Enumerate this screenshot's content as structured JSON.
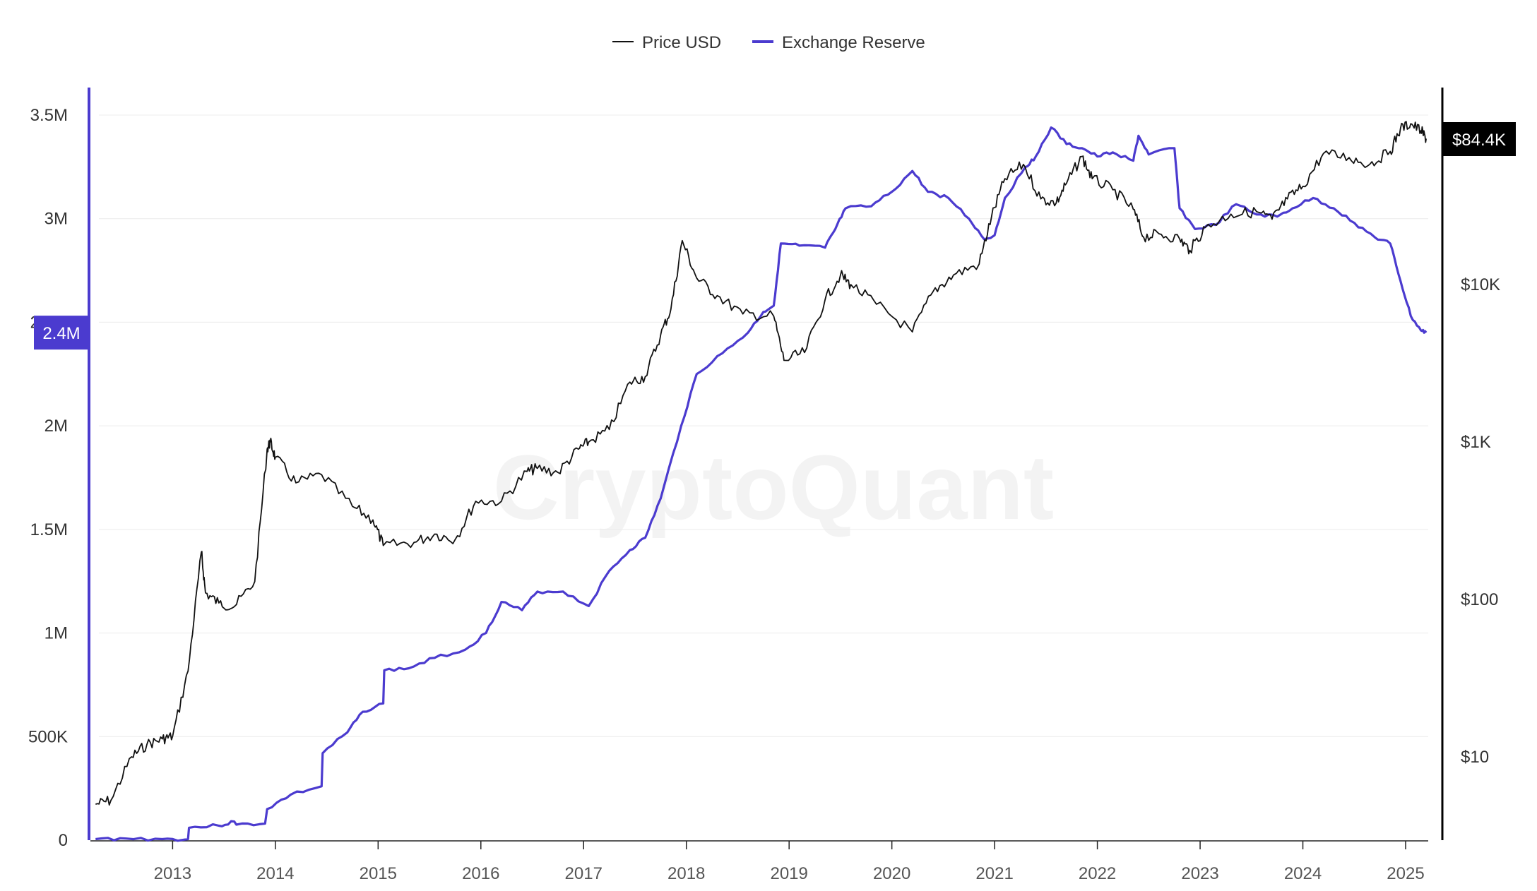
{
  "watermark": "CryptoQuant",
  "colors": {
    "price": "#111111",
    "reserve": "#4b3bcf",
    "grid": "#ececec",
    "reserve_badge": "#4b3bcf",
    "price_badge": "#000000"
  },
  "chart_data": {
    "type": "line",
    "legend": {
      "placement": "top-center",
      "entries": [
        {
          "label": "Price USD",
          "series": "price"
        },
        {
          "label": "Exchange Reserve",
          "series": "reserve"
        }
      ]
    },
    "x_axis": {
      "min": 2012.2,
      "max": 2025.22,
      "ticks": [
        2013,
        2014,
        2015,
        2016,
        2017,
        2018,
        2019,
        2020,
        2021,
        2022,
        2023,
        2024,
        2025
      ],
      "tick_labels": [
        "2013",
        "2014",
        "2015",
        "2016",
        "2017",
        "2018",
        "2019",
        "2020",
        "2021",
        "2022",
        "2023",
        "2024",
        "2025"
      ]
    },
    "y_axis_left": {
      "min": 0,
      "max": 3500000,
      "ticks": [
        0,
        500000,
        1000000,
        1500000,
        2000000,
        2500000,
        3000000,
        3500000
      ],
      "tick_labels": [
        "0",
        "500K",
        "1M",
        "1.5M",
        "2M",
        "2.5M",
        "3M",
        "3.5M"
      ],
      "current_value_label": "2.4M",
      "current_value": 2450000
    },
    "y_axis_right": {
      "scale": "log",
      "ticks": [
        10,
        100,
        1000,
        10000
      ],
      "tick_labels": [
        "$10",
        "$100",
        "$1K",
        "$10K"
      ],
      "current_value_label": "$84.4K",
      "current_value": 84400
    },
    "grid": true,
    "series": [
      {
        "name": "Exchange Reserve",
        "axis": "left",
        "points": [
          [
            2012.25,
            5000
          ],
          [
            2012.55,
            8000
          ],
          [
            2012.9,
            5000
          ],
          [
            2013.15,
            5000
          ],
          [
            2013.16,
            60000
          ],
          [
            2013.45,
            70000
          ],
          [
            2013.6,
            90000
          ],
          [
            2013.62,
            75000
          ],
          [
            2013.9,
            80000
          ],
          [
            2013.92,
            150000
          ],
          [
            2014.15,
            220000
          ],
          [
            2014.45,
            260000
          ],
          [
            2014.46,
            420000
          ],
          [
            2014.7,
            520000
          ],
          [
            2014.85,
            620000
          ],
          [
            2015.05,
            660000
          ],
          [
            2015.06,
            820000
          ],
          [
            2015.3,
            830000
          ],
          [
            2015.55,
            880000
          ],
          [
            2015.85,
            920000
          ],
          [
            2016.05,
            1000000
          ],
          [
            2016.2,
            1150000
          ],
          [
            2016.4,
            1110000
          ],
          [
            2016.55,
            1200000
          ],
          [
            2016.8,
            1200000
          ],
          [
            2017.05,
            1130000
          ],
          [
            2017.25,
            1300000
          ],
          [
            2017.45,
            1400000
          ],
          [
            2017.6,
            1460000
          ],
          [
            2017.75,
            1650000
          ],
          [
            2017.95,
            2000000
          ],
          [
            2018.1,
            2250000
          ],
          [
            2018.35,
            2350000
          ],
          [
            2018.6,
            2450000
          ],
          [
            2018.75,
            2550000
          ],
          [
            2018.85,
            2580000
          ],
          [
            2018.92,
            2880000
          ],
          [
            2019.1,
            2870000
          ],
          [
            2019.35,
            2860000
          ],
          [
            2019.45,
            2950000
          ],
          [
            2019.55,
            3050000
          ],
          [
            2019.8,
            3060000
          ],
          [
            2020.0,
            3130000
          ],
          [
            2020.2,
            3230000
          ],
          [
            2020.35,
            3130000
          ],
          [
            2020.55,
            3100000
          ],
          [
            2020.75,
            3000000
          ],
          [
            2020.9,
            2900000
          ],
          [
            2021.0,
            2920000
          ],
          [
            2021.1,
            3100000
          ],
          [
            2021.3,
            3250000
          ],
          [
            2021.4,
            3300000
          ],
          [
            2021.55,
            3440000
          ],
          [
            2021.7,
            3360000
          ],
          [
            2021.85,
            3340000
          ],
          [
            2022.0,
            3300000
          ],
          [
            2022.15,
            3320000
          ],
          [
            2022.35,
            3280000
          ],
          [
            2022.4,
            3400000
          ],
          [
            2022.5,
            3310000
          ],
          [
            2022.75,
            3340000
          ],
          [
            2022.8,
            3050000
          ],
          [
            2022.95,
            2950000
          ],
          [
            2023.15,
            2970000
          ],
          [
            2023.35,
            3070000
          ],
          [
            2023.55,
            3020000
          ],
          [
            2023.75,
            3010000
          ],
          [
            2023.9,
            3050000
          ],
          [
            2024.1,
            3100000
          ],
          [
            2024.3,
            3050000
          ],
          [
            2024.5,
            2980000
          ],
          [
            2024.7,
            2910000
          ],
          [
            2024.85,
            2880000
          ],
          [
            2024.95,
            2700000
          ],
          [
            2025.05,
            2530000
          ],
          [
            2025.15,
            2460000
          ],
          [
            2025.2,
            2450000
          ]
        ]
      },
      {
        "name": "Price USD",
        "axis": "right",
        "points": [
          [
            2012.25,
            5
          ],
          [
            2012.4,
            5.3
          ],
          [
            2012.6,
            10
          ],
          [
            2012.75,
            12
          ],
          [
            2012.9,
            13
          ],
          [
            2013.0,
            13.5
          ],
          [
            2013.15,
            35
          ],
          [
            2013.28,
            200
          ],
          [
            2013.32,
            110
          ],
          [
            2013.45,
            95
          ],
          [
            2013.6,
            90
          ],
          [
            2013.8,
            130
          ],
          [
            2013.92,
            900
          ],
          [
            2013.95,
            1000
          ],
          [
            2014.0,
            800
          ],
          [
            2014.2,
            550
          ],
          [
            2014.45,
            620
          ],
          [
            2014.75,
            390
          ],
          [
            2014.95,
            320
          ],
          [
            2015.05,
            220
          ],
          [
            2015.35,
            230
          ],
          [
            2015.55,
            260
          ],
          [
            2015.75,
            240
          ],
          [
            2015.95,
            420
          ],
          [
            2016.2,
            420
          ],
          [
            2016.45,
            650
          ],
          [
            2016.55,
            680
          ],
          [
            2016.75,
            640
          ],
          [
            2016.95,
            900
          ],
          [
            2017.05,
            1000
          ],
          [
            2017.25,
            1200
          ],
          [
            2017.45,
            2400
          ],
          [
            2017.6,
            2600
          ],
          [
            2017.75,
            4800
          ],
          [
            2017.85,
            7000
          ],
          [
            2017.96,
            19000
          ],
          [
            2018.1,
            11000
          ],
          [
            2018.3,
            8500
          ],
          [
            2018.55,
            6500
          ],
          [
            2018.85,
            6300
          ],
          [
            2018.95,
            3300
          ],
          [
            2019.15,
            3700
          ],
          [
            2019.35,
            8000
          ],
          [
            2019.5,
            11500
          ],
          [
            2019.6,
            10000
          ],
          [
            2019.85,
            7500
          ],
          [
            2020.2,
            5000
          ],
          [
            2020.4,
            9000
          ],
          [
            2020.6,
            11500
          ],
          [
            2020.85,
            13500
          ],
          [
            2020.97,
            27000
          ],
          [
            2021.1,
            47000
          ],
          [
            2021.28,
            58000
          ],
          [
            2021.45,
            35000
          ],
          [
            2021.6,
            33000
          ],
          [
            2021.7,
            44000
          ],
          [
            2021.85,
            65000
          ],
          [
            2021.95,
            47000
          ],
          [
            2022.15,
            40000
          ],
          [
            2022.35,
            30000
          ],
          [
            2022.45,
            20000
          ],
          [
            2022.6,
            21000
          ],
          [
            2022.8,
            19500
          ],
          [
            2022.9,
            16500
          ],
          [
            2023.05,
            23000
          ],
          [
            2023.3,
            28000
          ],
          [
            2023.55,
            29000
          ],
          [
            2023.7,
            26000
          ],
          [
            2023.85,
            35000
          ],
          [
            2024.0,
            42000
          ],
          [
            2024.2,
            68000
          ],
          [
            2024.45,
            64000
          ],
          [
            2024.65,
            58000
          ],
          [
            2024.85,
            70000
          ],
          [
            2024.95,
            98000
          ],
          [
            2025.05,
            105000
          ],
          [
            2025.15,
            95000
          ],
          [
            2025.2,
            84400
          ]
        ]
      }
    ]
  }
}
